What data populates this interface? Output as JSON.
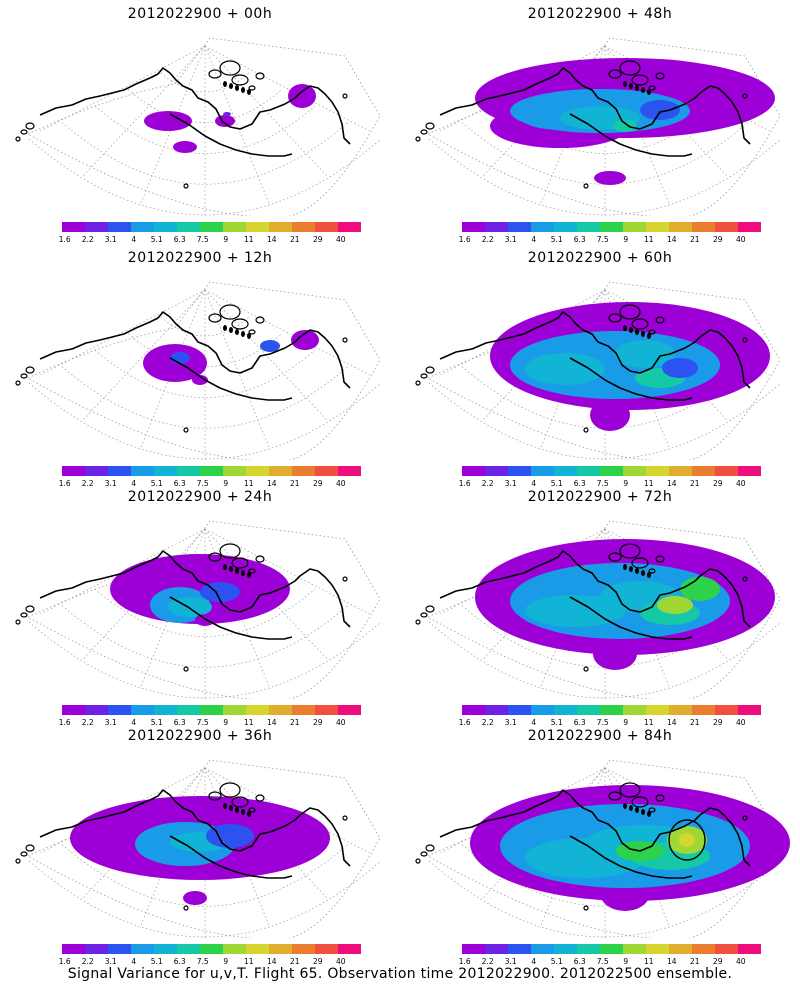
{
  "legend": {
    "colors": [
      "#9d00d6",
      "#6e22e6",
      "#2c52ef",
      "#1a9be8",
      "#11b4d4",
      "#15c9a6",
      "#2dd14a",
      "#9fd836",
      "#d6d52f",
      "#e0ad2f",
      "#eb7d2f",
      "#f0503f",
      "#f00c7f"
    ],
    "labels": [
      "1.6",
      "2.2",
      "3.1",
      "4",
      "5.1",
      "6.3",
      "7.5",
      "9",
      "11",
      "14",
      "21",
      "29",
      "40"
    ]
  },
  "panels": [
    {
      "title": "2012022900 + 00h"
    },
    {
      "title": "2012022900 + 48h"
    },
    {
      "title": "2012022900 + 12h"
    },
    {
      "title": "2012022900 + 60h"
    },
    {
      "title": "2012022900 + 24h"
    },
    {
      "title": "2012022900 + 72h"
    },
    {
      "title": "2012022900 + 36h"
    },
    {
      "title": "2012022900 + 84h"
    }
  ],
  "footer": "Signal Variance for u,v,T. Flight 65. Observation time 2012022900. 2012022500 ensemble."
}
